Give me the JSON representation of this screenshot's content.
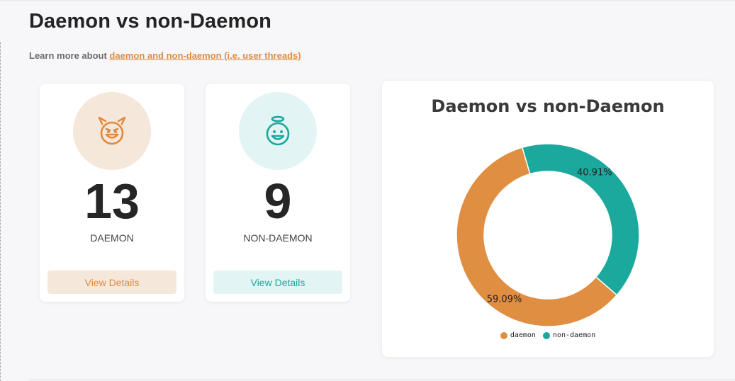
{
  "header": {
    "title": "Daemon vs non-Daemon",
    "learn_more_prefix": "Learn more about",
    "learn_more_link": "daemon and non-daemon (i.e. user threads)"
  },
  "cards": {
    "daemon": {
      "count": "13",
      "label": "DAEMON",
      "button": "View Details",
      "icon": "devil-face-icon",
      "color": "#e08b3e",
      "bg": "#f6e7db"
    },
    "non_daemon": {
      "count": "9",
      "label": "NON-DAEMON",
      "button": "View Details",
      "icon": "angel-face-icon",
      "color": "#1aa99c",
      "bg": "#e3f4f4"
    }
  },
  "chart_data": {
    "type": "pie",
    "title": "Daemon vs non-Daemon",
    "series": [
      {
        "name": "daemon",
        "value": 13,
        "percent_label": "59.09%",
        "color": "#e08e41"
      },
      {
        "name": "non-daemon",
        "value": 9,
        "percent_label": "40.91%",
        "color": "#1aa99c"
      }
    ],
    "donut": true,
    "legend_position": "bottom"
  }
}
